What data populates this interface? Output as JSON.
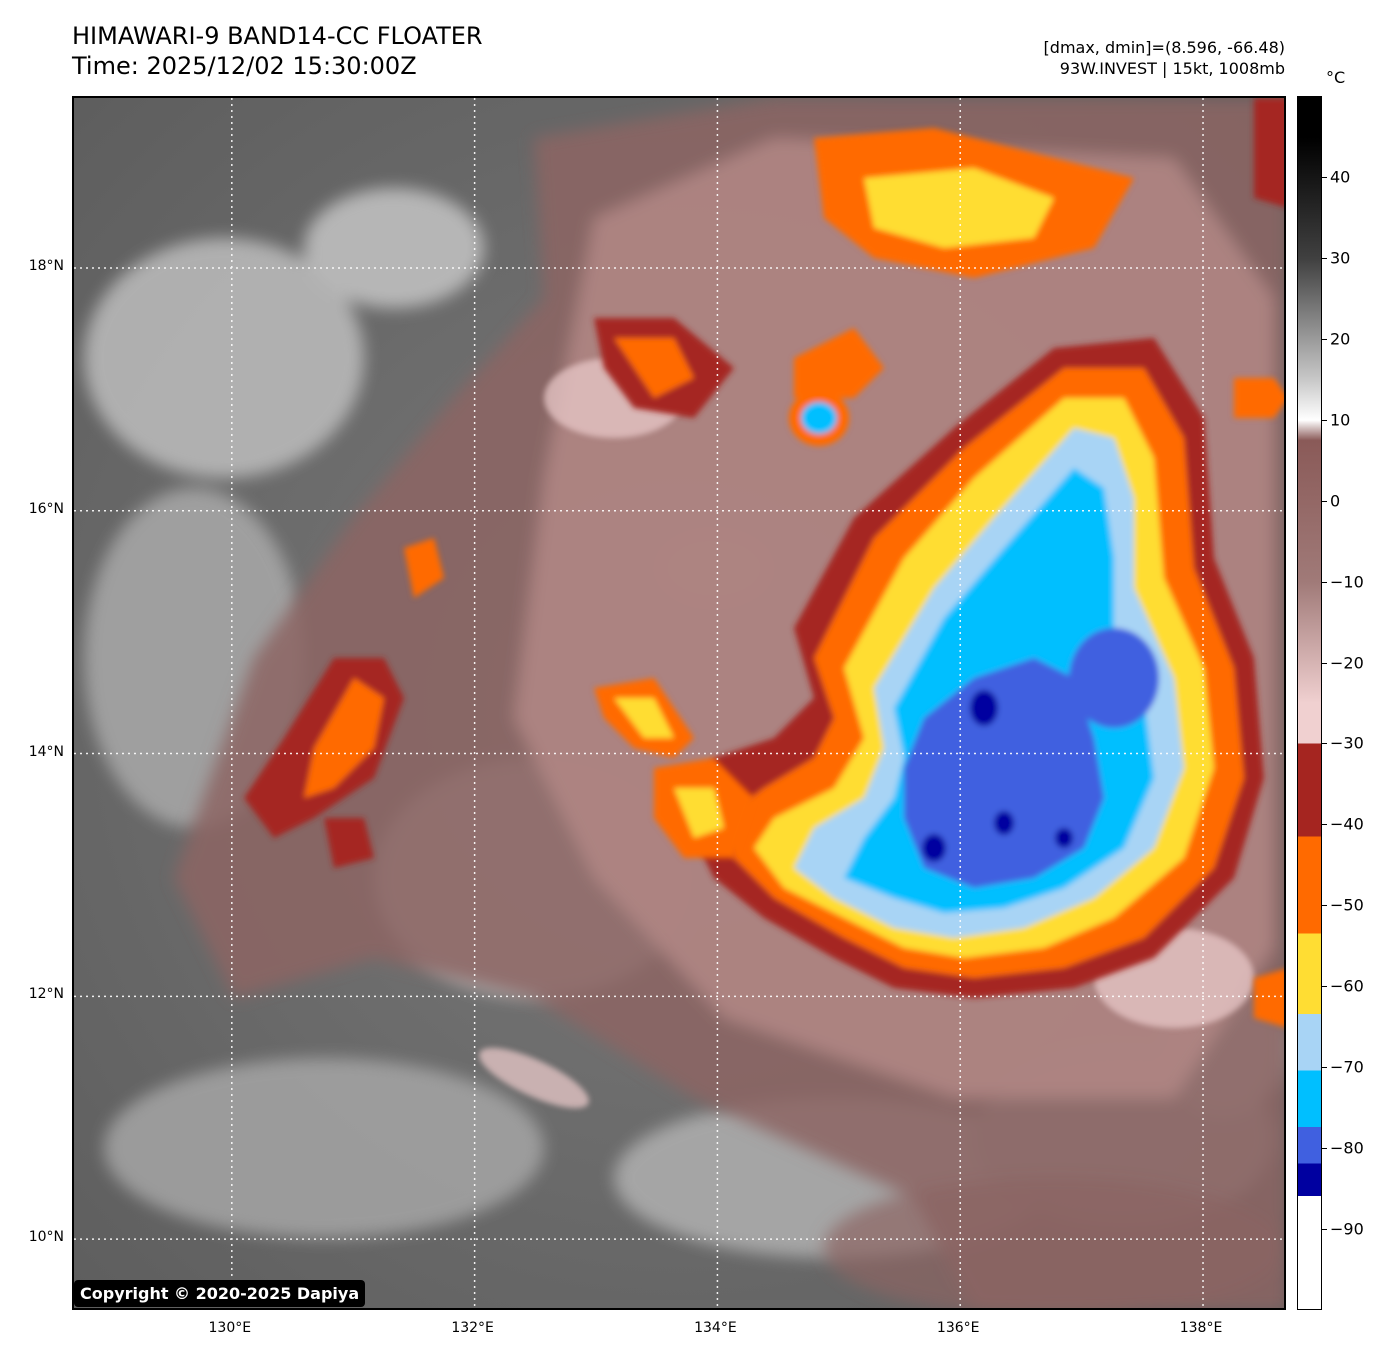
{
  "header": {
    "title_line1": "HIMAWARI-9 BAND14-CC FLOATER",
    "title_line2": "Time: 2025/12/02 15:30:00Z",
    "info_line1": "[dmax, dmin]=(8.596, -66.48)",
    "info_line2": "93W.INVEST | 15kt, 1008mb"
  },
  "map": {
    "lat_labels": [
      "18°N",
      "16°N",
      "14°N",
      "12°N",
      "10°N"
    ],
    "lat_values": [
      18,
      16,
      14,
      12,
      10
    ],
    "lon_labels": [
      "130°E",
      "132°E",
      "134°E",
      "136°E",
      "138°E"
    ],
    "lon_values": [
      130,
      132,
      134,
      136,
      138
    ],
    "lat_range": [
      9.4,
      19.4
    ],
    "lon_range": [
      128.7,
      138.7
    ],
    "grid": "dotted",
    "copyright": "Copyright © 2020-2025 Dapiya"
  },
  "colorbar": {
    "unit": "°C",
    "range": [
      -100,
      50
    ],
    "ticks": [
      40,
      30,
      20,
      10,
      0,
      -10,
      -20,
      -30,
      -40,
      -50,
      -60,
      -70,
      -80,
      -90
    ],
    "tick_labels": [
      "40",
      "30",
      "20",
      "10",
      "0",
      "−10",
      "−20",
      "−30",
      "−40",
      "−50",
      "−60",
      "−70",
      "−80",
      "−90"
    ],
    "colors": {
      "black_top": "#000000",
      "white_mid": "#ffffff",
      "brown": "#8a5a58",
      "pink": "#f0d0d0",
      "dark_red": "#a52520",
      "orange": "#ff6a00",
      "yellow": "#ffdd33",
      "light_blue": "#a8d4f5",
      "cyan": "#00bfff",
      "royal_blue": "#4060e0",
      "navy": "#0000a0",
      "white_bottom": "#ffffff"
    }
  }
}
